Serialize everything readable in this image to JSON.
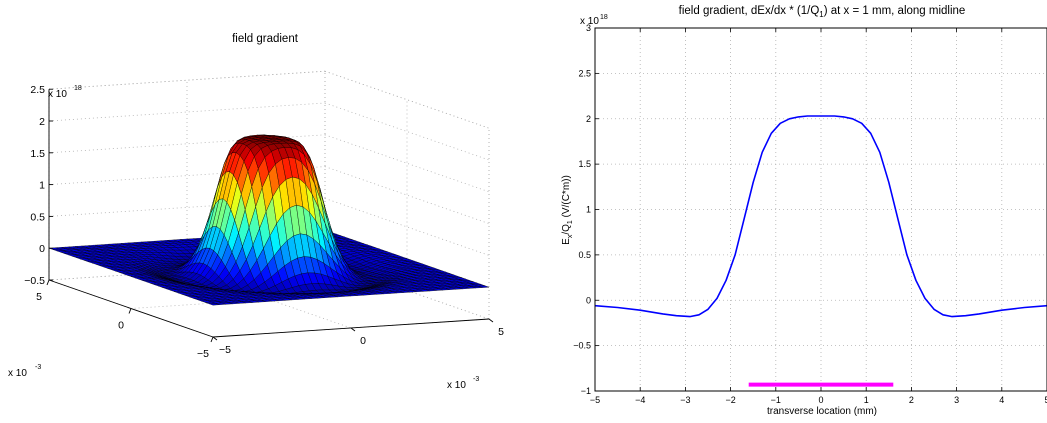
{
  "chart_data": [
    {
      "type": "surface",
      "title": "field gradient",
      "z_exponent_label": "x 10",
      "z_exponent": "18",
      "x_exponent_label": "x 10",
      "x_exponent": "-3",
      "y_exponent_label": "x 10",
      "y_exponent": "-3",
      "zlim": [
        -0.5,
        2.5
      ],
      "z_ticks": [
        "−0.5",
        "0",
        "0.5",
        "1",
        "1.5",
        "2",
        "2.5"
      ],
      "x_ticks": [
        "−5",
        "0",
        "5"
      ],
      "y_ticks": [
        "5",
        "0",
        "−5"
      ],
      "xlim": [
        -5,
        5
      ],
      "ylim": [
        -5,
        5
      ],
      "peak_value": 2.03,
      "colormap": "jet",
      "grid": true
    },
    {
      "type": "line",
      "title_parts": [
        "field gradient, dEx/dx * (1/Q",
        "1",
        ") at x = 1 mm, along midline"
      ],
      "xlabel": "transverse location (mm)",
      "ylabel_parts": [
        "E",
        "x",
        "/Q",
        "1",
        " (V/(C*m))"
      ],
      "y_exponent_label": "x 10",
      "y_exponent": "18",
      "xlim": [
        -5,
        5
      ],
      "ylim": [
        -1,
        3
      ],
      "x_ticks": [
        "−5",
        "−4",
        "−3",
        "−2",
        "−1",
        "0",
        "1",
        "2",
        "3",
        "4",
        "5"
      ],
      "y_ticks": [
        "−1",
        "−0.5",
        "0",
        "0.5",
        "1",
        "1.5",
        "2",
        "2.5",
        "3"
      ],
      "grid": true,
      "series": [
        {
          "color": "#0000ff",
          "x": [
            -5,
            -4.5,
            -4,
            -3.5,
            -3.2,
            -2.9,
            -2.7,
            -2.5,
            -2.3,
            -2.1,
            -1.9,
            -1.7,
            -1.5,
            -1.3,
            -1.1,
            -0.9,
            -0.7,
            -0.5,
            -0.3,
            0,
            0.3,
            0.5,
            0.7,
            0.9,
            1.1,
            1.3,
            1.5,
            1.7,
            1.9,
            2.1,
            2.3,
            2.5,
            2.7,
            2.9,
            3.2,
            3.5,
            4,
            4.5,
            5
          ],
          "y": [
            -0.06,
            -0.08,
            -0.11,
            -0.15,
            -0.17,
            -0.18,
            -0.16,
            -0.1,
            0.02,
            0.22,
            0.5,
            0.9,
            1.3,
            1.63,
            1.84,
            1.95,
            2.0,
            2.02,
            2.03,
            2.03,
            2.03,
            2.02,
            2.0,
            1.95,
            1.84,
            1.63,
            1.3,
            0.9,
            0.5,
            0.22,
            0.02,
            -0.1,
            -0.16,
            -0.18,
            -0.17,
            -0.15,
            -0.11,
            -0.08,
            -0.06
          ]
        },
        {
          "color": "#ff00ff",
          "x": [
            -1.6,
            1.6
          ],
          "y": [
            -0.93,
            -0.93
          ]
        }
      ]
    }
  ]
}
